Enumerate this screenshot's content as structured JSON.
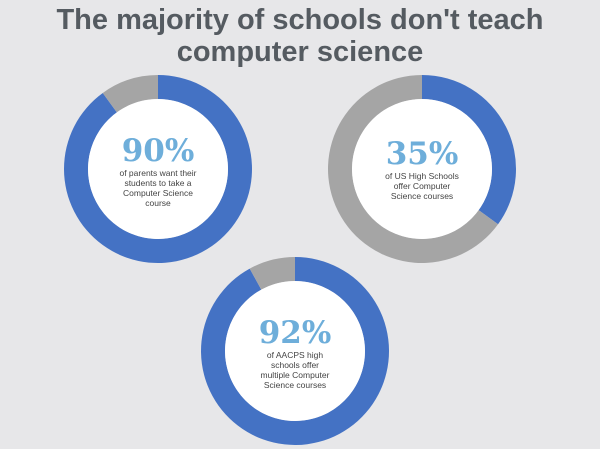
{
  "title": {
    "line1": "The majority of schools don't teach",
    "line2": "computer science"
  },
  "colors": {
    "filled": "#4472c4",
    "remainder": "#a5a5a5",
    "center": "#ffffff",
    "background": "#e7e7e9",
    "percent_text": "#6eaeda",
    "title_text": "#555b61"
  },
  "chart_data": [
    {
      "type": "pie",
      "subtype": "donut",
      "labels": [
        "parents who want their students to take a CS course",
        "remainder"
      ],
      "values": [
        90,
        10
      ],
      "percent_label": "90%",
      "caption": [
        "of parents want their",
        "students to take a",
        "Computer Science",
        "course"
      ]
    },
    {
      "type": "pie",
      "subtype": "donut",
      "labels": [
        "US High Schools offering CS",
        "remainder"
      ],
      "values": [
        35,
        65
      ],
      "percent_label": "35%",
      "caption": [
        "of US High Schools",
        "offer Computer",
        "Science courses"
      ]
    },
    {
      "type": "pie",
      "subtype": "donut",
      "labels": [
        "AACPS high schools offering multiple CS courses",
        "remainder"
      ],
      "values": [
        92,
        8
      ],
      "percent_label": "92%",
      "caption": [
        "of AACPS high",
        "schools offer",
        "multiple Computer",
        "Science courses"
      ]
    }
  ]
}
